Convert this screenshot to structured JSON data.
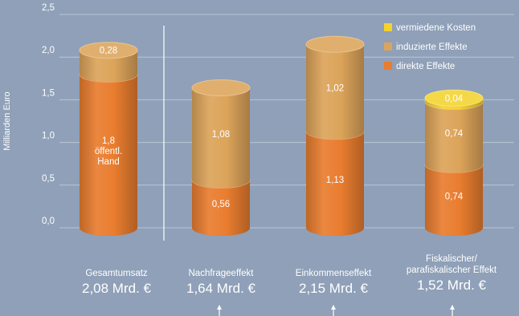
{
  "chart_data": {
    "type": "bar",
    "stacked": true,
    "style": "3d-cylinder",
    "ylabel": "Milliarden Euro",
    "ylim": [
      0,
      2.5
    ],
    "yticks": [
      "0,0",
      "0,5",
      "1,0",
      "1,5",
      "2,0",
      "2,5"
    ],
    "grid": true,
    "legend_position": "top-right",
    "legend": [
      "vermiedene Kosten",
      "induzierte Effekte",
      "direkte Effekte"
    ],
    "colors": {
      "background": "#8fa0b8",
      "direkte Effekte": "#e97d2f",
      "induzierte Effekte": "#dca45a",
      "vermiedene Kosten": "#f4d32e"
    },
    "categories": [
      {
        "name": "Gesamtumsatz",
        "total": "2,08 Mrd. €",
        "arrow": false
      },
      {
        "name": "Nachfrageeffekt",
        "total": "1,64 Mrd. €",
        "arrow": true
      },
      {
        "name": "Einkommenseffekt",
        "total": "2,15 Mrd. €",
        "arrow": true
      },
      {
        "name": "Fiskalischer/\nparafiskalischer Effekt",
        "total": "1,52 Mrd. €",
        "arrow": true
      }
    ],
    "series": [
      {
        "name": "direkte Effekte",
        "values": [
          1.8,
          0.56,
          1.13,
          0.74
        ],
        "labels": [
          "1,8\nöffentl.\nHand",
          "0,56",
          "1,13",
          "0,74"
        ]
      },
      {
        "name": "induzierte Effekte",
        "values": [
          0.28,
          1.08,
          1.02,
          0.74
        ],
        "labels": [
          "0,28",
          "1,08",
          "1,02",
          "0,74"
        ]
      },
      {
        "name": "vermiedene Kosten",
        "values": [
          0,
          0,
          0,
          0.04
        ],
        "labels": [
          "",
          "",
          "",
          "0,04"
        ]
      }
    ]
  }
}
